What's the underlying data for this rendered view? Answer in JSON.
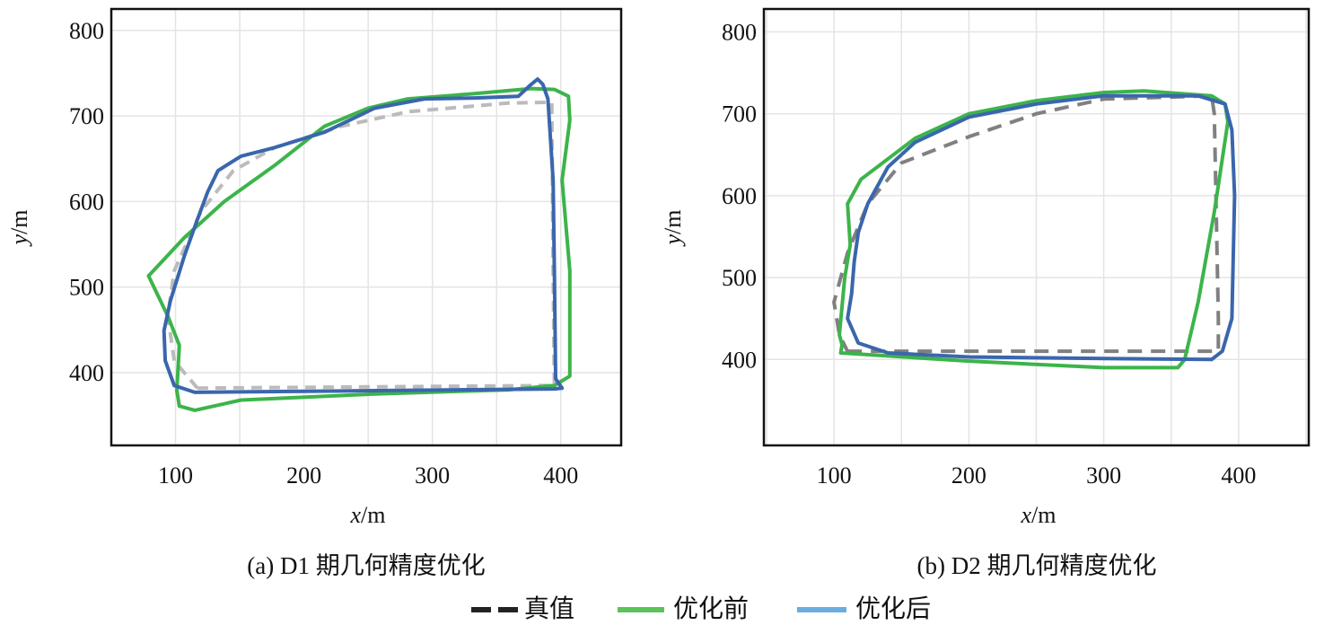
{
  "legend": [
    {
      "label": "真值",
      "color": "#222222",
      "style": "dashed"
    },
    {
      "label": "优化前",
      "color": "#3cb44b",
      "style": "solid"
    },
    {
      "label": "优化后",
      "color": "#6aaee0",
      "style": "solid"
    }
  ],
  "chart_data": [
    {
      "type": "line",
      "caption": "(a) D1 期几何精度优化",
      "xlabel_var": "x",
      "xlabel_unit": "/m",
      "ylabel_var": "y",
      "ylabel_unit": "/m",
      "xlim": [
        50,
        447
      ],
      "ylim": [
        315,
        825
      ],
      "xticks": [
        100,
        200,
        300,
        400
      ],
      "yticks": [
        400,
        500,
        600,
        700,
        800
      ],
      "grid": true,
      "series": [
        {
          "name": "真值",
          "color": "#bbbbbb",
          "dashed": true,
          "points": [
            [
              117,
              382
            ],
            [
              395,
              385
            ],
            [
              394,
              519
            ],
            [
              393,
              716
            ],
            [
              359,
              715
            ],
            [
              281,
              705
            ],
            [
              229,
              688
            ],
            [
              177,
              663
            ],
            [
              145,
              636
            ],
            [
              120,
              589
            ],
            [
              99,
              519
            ],
            [
              94,
              466
            ],
            [
              99,
              414
            ],
            [
              117,
              382
            ]
          ]
        },
        {
          "name": "优化前",
          "color": "#3cb44b",
          "dashed": false,
          "points": [
            [
              103,
              361
            ],
            [
              115,
              356
            ],
            [
              151,
              368
            ],
            [
              255,
              375
            ],
            [
              359,
              380
            ],
            [
              395,
              385
            ],
            [
              407,
              396
            ],
            [
              407,
              519
            ],
            [
              401,
              625
            ],
            [
              407,
              695
            ],
            [
              406,
              723
            ],
            [
              395,
              731
            ],
            [
              377,
              732
            ],
            [
              333,
              726
            ],
            [
              281,
              720
            ],
            [
              250,
              709
            ],
            [
              216,
              688
            ],
            [
              177,
              642
            ],
            [
              138,
              600
            ],
            [
              107,
              558
            ],
            [
              79,
              513
            ],
            [
              94,
              466
            ],
            [
              103,
              432
            ],
            [
              101,
              379
            ],
            [
              103,
              361
            ]
          ]
        },
        {
          "name": "优化后",
          "color": "#3a66ad",
          "dashed": false,
          "points": [
            [
              115,
              377
            ],
            [
              255,
              379
            ],
            [
              395,
              381
            ],
            [
              401,
              382
            ],
            [
              396,
              393
            ],
            [
              395,
              519
            ],
            [
              394,
              625
            ],
            [
              390,
              720
            ],
            [
              386,
              737
            ],
            [
              382,
              743
            ],
            [
              377,
              737
            ],
            [
              367,
              723
            ],
            [
              333,
              721
            ],
            [
              294,
              720
            ],
            [
              255,
              709
            ],
            [
              216,
              681
            ],
            [
              177,
              663
            ],
            [
              151,
              653
            ],
            [
              133,
              636
            ],
            [
              125,
              611
            ],
            [
              117,
              579
            ],
            [
              107,
              537
            ],
            [
              96,
              484
            ],
            [
              91,
              449
            ],
            [
              92,
              414
            ],
            [
              99,
              385
            ],
            [
              115,
              377
            ]
          ]
        }
      ]
    },
    {
      "type": "line",
      "caption": "(b) D2 期几何精度优化",
      "xlabel_var": "x",
      "xlabel_unit": "/m",
      "ylabel_var": "y",
      "ylabel_unit": "/m",
      "xlim": [
        48,
        452
      ],
      "ylim": [
        295,
        828
      ],
      "xticks": [
        100,
        200,
        300,
        400
      ],
      "yticks": [
        400,
        500,
        600,
        700,
        800
      ],
      "grid": true,
      "series": [
        {
          "name": "真值",
          "color": "#808080",
          "dashed": true,
          "points": [
            [
              110,
              410
            ],
            [
              385,
              410
            ],
            [
              385,
              450
            ],
            [
              382,
              700
            ],
            [
              380,
              722
            ],
            [
              300,
              718
            ],
            [
              250,
              700
            ],
            [
              200,
              672
            ],
            [
              150,
              640
            ],
            [
              125,
              590
            ],
            [
              110,
              530
            ],
            [
              100,
              470
            ],
            [
              104,
              430
            ],
            [
              110,
              410
            ]
          ]
        },
        {
          "name": "优化前",
          "color": "#3cb44b",
          "dashed": false,
          "points": [
            [
              105,
              408
            ],
            [
              200,
              398
            ],
            [
              300,
              390
            ],
            [
              355,
              390
            ],
            [
              360,
              400
            ],
            [
              370,
              470
            ],
            [
              382,
              580
            ],
            [
              392,
              690
            ],
            [
              390,
              712
            ],
            [
              380,
              722
            ],
            [
              330,
              728
            ],
            [
              300,
              726
            ],
            [
              250,
              716
            ],
            [
              200,
              700
            ],
            [
              160,
              670
            ],
            [
              120,
              620
            ],
            [
              110,
              590
            ],
            [
              112,
              540
            ],
            [
              108,
              500
            ],
            [
              104,
              430
            ],
            [
              106,
              418
            ],
            [
              105,
              408
            ]
          ]
        },
        {
          "name": "优化后",
          "color": "#3a66ad",
          "dashed": false,
          "points": [
            [
              380,
              400
            ],
            [
              388,
              410
            ],
            [
              395,
              450
            ],
            [
              397,
              600
            ],
            [
              395,
              680
            ],
            [
              390,
              712
            ],
            [
              370,
              722
            ],
            [
              300,
              722
            ],
            [
              250,
              712
            ],
            [
              200,
              696
            ],
            [
              160,
              665
            ],
            [
              140,
              635
            ],
            [
              125,
              590
            ],
            [
              118,
              555
            ],
            [
              115,
              520
            ],
            [
              113,
              480
            ],
            [
              110,
              450
            ],
            [
              118,
              420
            ],
            [
              140,
              408
            ],
            [
              200,
              403
            ],
            [
              300,
              401
            ],
            [
              380,
              400
            ]
          ]
        }
      ]
    }
  ]
}
